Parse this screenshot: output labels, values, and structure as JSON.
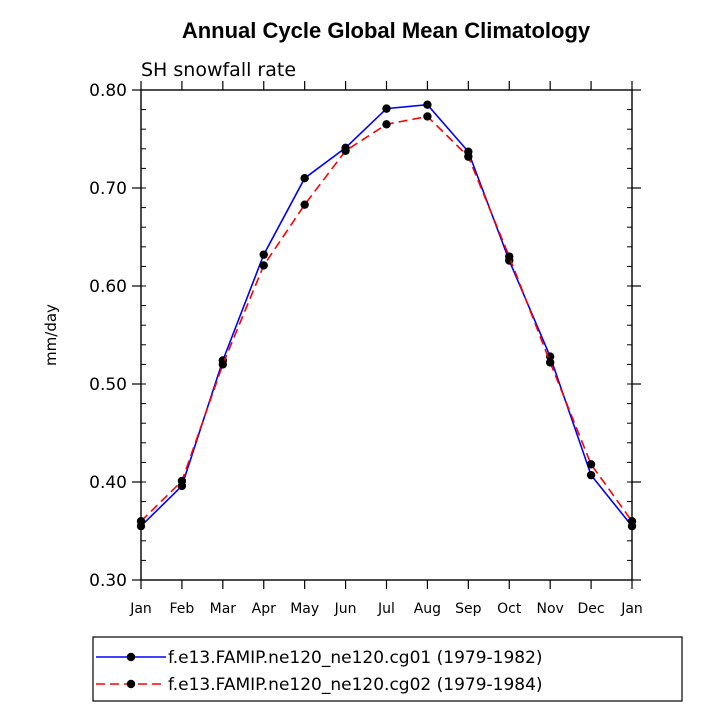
{
  "chart_data": {
    "type": "line",
    "title": "Annual Cycle Global Mean Climatology",
    "subtitle": "SH snowfall rate",
    "xlabel": "",
    "ylabel": "mm/day",
    "categories": [
      "Jan",
      "Feb",
      "Mar",
      "Apr",
      "May",
      "Jun",
      "Jul",
      "Aug",
      "Sep",
      "Oct",
      "Nov",
      "Dec",
      "Jan"
    ],
    "ylim": [
      0.3,
      0.8
    ],
    "yticks": [
      0.3,
      0.4,
      0.5,
      0.6,
      0.7,
      0.8
    ],
    "ytick_labels": [
      "0.30",
      "0.40",
      "0.50",
      "0.60",
      "0.70",
      "0.80"
    ],
    "grid": false,
    "legend_position": "bottom",
    "series": [
      {
        "name": "f.e13.FAMIP.ne120_ne120.cg01 (1979-1982)",
        "color": "#0000ff",
        "dash": "solid",
        "values": [
          0.355,
          0.396,
          0.524,
          0.632,
          0.71,
          0.741,
          0.781,
          0.785,
          0.737,
          0.626,
          0.528,
          0.407,
          0.355
        ]
      },
      {
        "name": "f.e13.FAMIP.ne120_ne120.cg02 (1979-1984)",
        "color": "#ff0000",
        "dash": "dashed",
        "values": [
          0.36,
          0.401,
          0.52,
          0.621,
          0.683,
          0.738,
          0.765,
          0.773,
          0.732,
          0.63,
          0.522,
          0.418,
          0.36
        ]
      }
    ]
  }
}
